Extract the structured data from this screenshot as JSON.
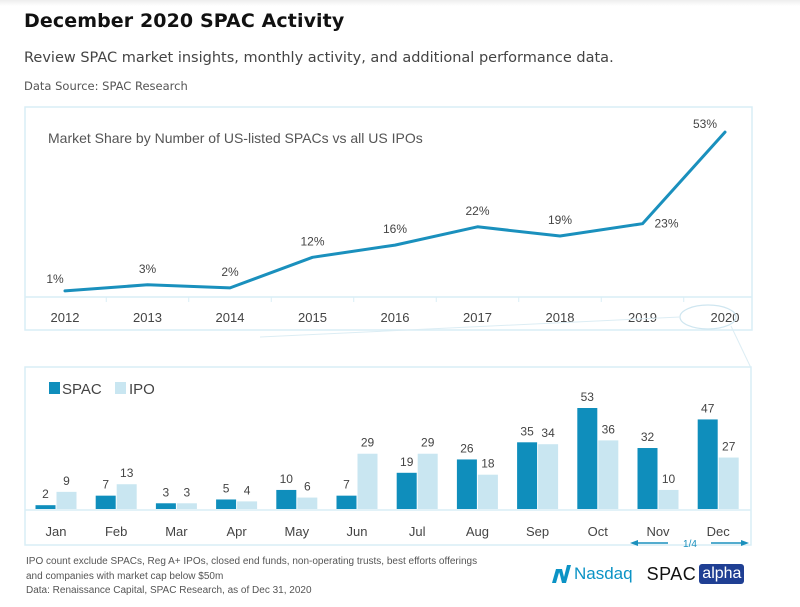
{
  "page": {
    "title": "December 2020 SPAC Activity",
    "subtitle": "Review SPAC market insights, monthly activity, and additional performance data.",
    "source": "Data Source: SPAC Research"
  },
  "colors": {
    "line": "#1a90bd",
    "spac": "#0f8ebc",
    "ipo": "#c9e6f1",
    "frame": "#d9eef6",
    "text": "#444444"
  },
  "chart_data": [
    {
      "type": "line",
      "title": "Market Share by Number of US-listed SPACs vs all US IPOs",
      "xlabel": "",
      "ylabel": "",
      "categories": [
        "2012",
        "2013",
        "2014",
        "2015",
        "2016",
        "2017",
        "2018",
        "2019",
        "2020"
      ],
      "values": [
        1,
        3,
        2,
        12,
        16,
        22,
        19,
        23,
        53
      ],
      "data_labels": [
        "1%",
        "3%",
        "2%",
        "12%",
        "16%",
        "22%",
        "19%",
        "23%",
        "53%"
      ],
      "unit": "%",
      "ylim": [
        0,
        55
      ],
      "grid": false,
      "highlighted_category": "2020"
    },
    {
      "type": "bar",
      "title": "",
      "categories": [
        "Jan",
        "Feb",
        "Mar",
        "Apr",
        "May",
        "Jun",
        "Jul",
        "Aug",
        "Sep",
        "Oct",
        "Nov",
        "Dec"
      ],
      "series": [
        {
          "name": "SPAC",
          "values": [
            2,
            7,
            3,
            5,
            10,
            7,
            19,
            26,
            35,
            53,
            32,
            47
          ]
        },
        {
          "name": "IPO",
          "values": [
            9,
            13,
            3,
            4,
            6,
            29,
            29,
            18,
            34,
            36,
            10,
            27
          ]
        }
      ],
      "legend": {
        "placement": "top-left",
        "entries": [
          "SPAC",
          "IPO"
        ]
      },
      "ylim": [
        0,
        60
      ],
      "grid": false,
      "annotation": {
        "text": "1/4",
        "span": [
          "Nov",
          "Dec"
        ],
        "style": "double-arrow"
      }
    }
  ],
  "footnote": {
    "lines": [
      "IPO count exclude SPACs, Reg A+ IPOs, closed end funds, non-operating trusts, best efforts offerings",
      "and companies with market cap below $50m",
      "Data:   Renaissance Capital, SPAC Research, as of Dec 31, 2020"
    ]
  },
  "logos": {
    "nasdaq": "Nasdaq",
    "spac": "SPAC",
    "alpha": "alpha"
  }
}
